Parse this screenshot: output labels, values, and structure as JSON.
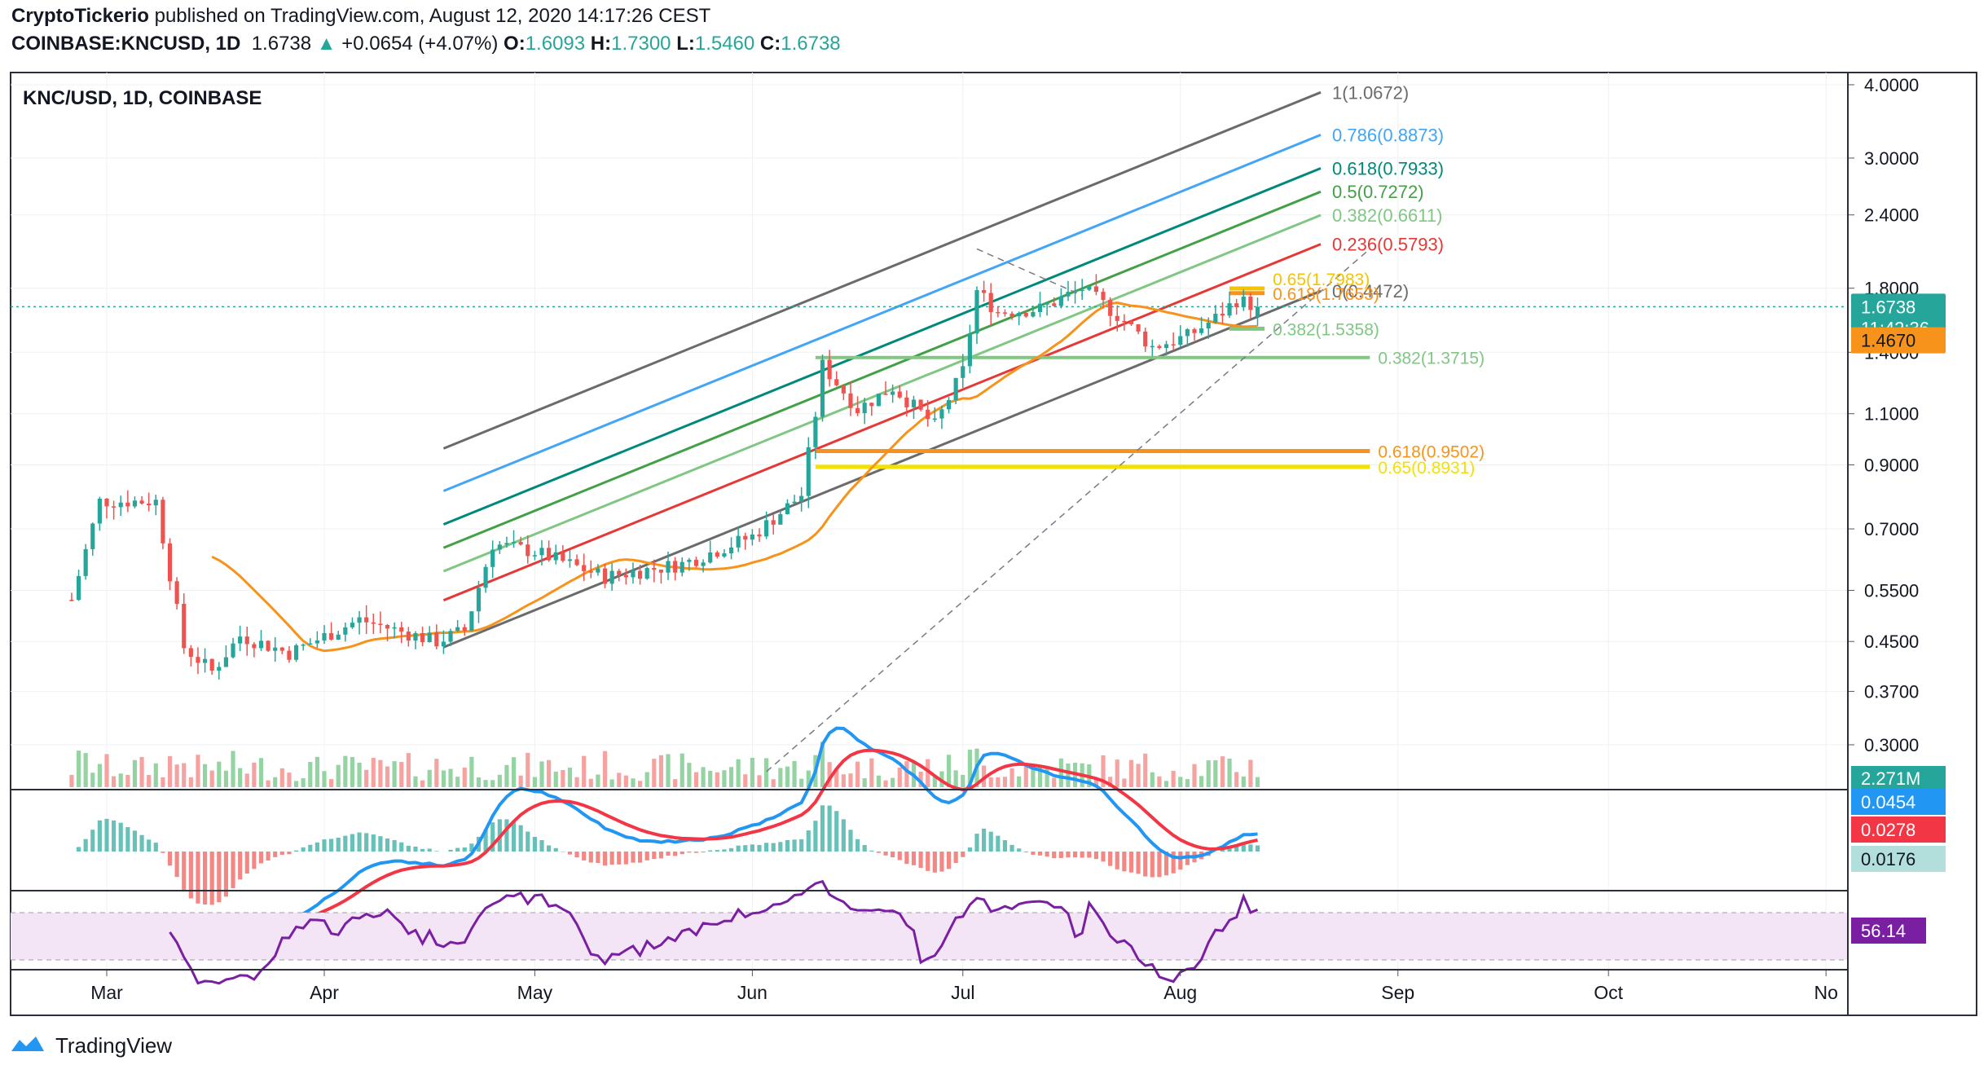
{
  "header": {
    "author": "CryptoTickerio",
    "published": "published on TradingView.com, August 12, 2020 14:17:26 CEST",
    "symbol": "COINBASE:KNCUSD, 1D",
    "last": "1.6738",
    "change": "+0.0654 (+4.07%)",
    "open_label": "O:",
    "open": "1.6093",
    "high_label": "H:",
    "high": "1.7300",
    "low_label": "L:",
    "low": "1.5460",
    "close_label": "C:",
    "close": "1.6738"
  },
  "pane_title": "KNC/USD, 1D, COINBASE",
  "footer_brand": "TradingView",
  "colors": {
    "up": "#26a69a",
    "down": "#ef5350",
    "vol_up": "#94d3a2",
    "vol_down": "#f6a2a0",
    "channel": "#6b6b6b",
    "fib_786": "#42a5f5",
    "fib_618": "#00897b",
    "fib_5": "#43a047",
    "fib_382": "#81c784",
    "fib_236": "#e53935",
    "ma": "#f7931a",
    "macd": "#2196f3",
    "signal": "#f23645",
    "rsi": "#7b1fa2",
    "price_line": "#26a69a"
  },
  "chart_data": {
    "type": "candlestick",
    "symbol": "KNC/USD",
    "timeframe": "1D",
    "exchange": "COINBASE",
    "scale": "log",
    "x_axis": {
      "labels": [
        "Mar",
        "Apr",
        "May",
        "Jun",
        "Jul",
        "Aug",
        "Sep",
        "Oct",
        "No"
      ],
      "dates": [
        "2020-03-01",
        "2020-04-01",
        "2020-05-01",
        "2020-06-01",
        "2020-07-01",
        "2020-08-01",
        "2020-09-01",
        "2020-10-01",
        "2020-11-01"
      ]
    },
    "y_axis": {
      "ticks": [
        "4.0000",
        "3.0000",
        "2.4000",
        "1.8000",
        "1.4000",
        "1.1000",
        "0.9000",
        "0.7000",
        "0.5500",
        "0.4500",
        "0.3700",
        "0.3000"
      ],
      "tick_values": [
        4.0,
        3.0,
        2.4,
        1.8,
        1.4,
        1.1,
        0.9,
        0.7,
        0.55,
        0.45,
        0.37,
        0.3
      ],
      "range": [
        0.27,
        4.6
      ],
      "badges": [
        {
          "text": "1.6738",
          "value": 1.6738,
          "kind": "last"
        },
        {
          "text": "11:42:36",
          "value": 1.54,
          "kind": "countdown"
        },
        {
          "text": "1.4670",
          "value": 1.467,
          "kind": "ma"
        }
      ]
    },
    "key_points": [
      {
        "date": "2020-02-25",
        "close": 0.53
      },
      {
        "date": "2020-02-29",
        "close": 0.78
      },
      {
        "date": "2020-03-08",
        "close": 0.78
      },
      {
        "date": "2020-03-12",
        "close": 0.44
      },
      {
        "date": "2020-03-16",
        "close": 0.4
      },
      {
        "date": "2020-03-20",
        "close": 0.46
      },
      {
        "date": "2020-03-27",
        "close": 0.43
      },
      {
        "date": "2020-04-06",
        "close": 0.49
      },
      {
        "date": "2020-04-17",
        "close": 0.45
      },
      {
        "date": "2020-04-21",
        "close": 0.47
      },
      {
        "date": "2020-04-25",
        "close": 0.66
      },
      {
        "date": "2020-05-01",
        "close": 0.64
      },
      {
        "date": "2020-05-11",
        "close": 0.58
      },
      {
        "date": "2020-05-22",
        "close": 0.61
      },
      {
        "date": "2020-06-01",
        "close": 0.68
      },
      {
        "date": "2020-06-08",
        "close": 0.8
      },
      {
        "date": "2020-06-10",
        "close": 1.1
      },
      {
        "date": "2020-06-11",
        "close": 1.33
      },
      {
        "date": "2020-06-16",
        "close": 1.12
      },
      {
        "date": "2020-06-21",
        "close": 1.22
      },
      {
        "date": "2020-06-27",
        "close": 1.05
      },
      {
        "date": "2020-07-01",
        "close": 1.3
      },
      {
        "date": "2020-07-03",
        "close": 1.78
      },
      {
        "date": "2020-07-06",
        "close": 1.64
      },
      {
        "date": "2020-07-12",
        "close": 1.66
      },
      {
        "date": "2020-07-18",
        "close": 1.8
      },
      {
        "date": "2020-07-23",
        "close": 1.62
      },
      {
        "date": "2020-07-28",
        "close": 1.43
      },
      {
        "date": "2020-08-02",
        "close": 1.49
      },
      {
        "date": "2020-08-06",
        "close": 1.6
      },
      {
        "date": "2020-08-09",
        "close": 1.72
      },
      {
        "date": "2020-08-12",
        "close": 1.6738
      }
    ],
    "volume": {
      "last_label": "2.271M"
    },
    "fib_channel": [
      {
        "level": "1",
        "value": "1.0672",
        "label": "1(1.0672)"
      },
      {
        "level": "0.786",
        "value": "0.8873",
        "label": "0.786(0.8873)"
      },
      {
        "level": "0.618",
        "value": "0.7933",
        "label": "0.618(0.7933)"
      },
      {
        "level": "0.5",
        "value": "0.7272",
        "label": "0.5(0.7272)"
      },
      {
        "level": "0.382",
        "value": "0.6611",
        "label": "0.382(0.6611)"
      },
      {
        "level": "0.236",
        "value": "0.5793",
        "label": "0.236(0.5793)"
      },
      {
        "level": "0",
        "value": "0.4472",
        "label": "0(0.4472)"
      }
    ],
    "fib_retracements": [
      {
        "label": "0.382(1.3715)",
        "price": 1.3715
      },
      {
        "label": "0.618(0.9502)",
        "price": 0.9502
      },
      {
        "label": "0.65(0.8931)",
        "price": 0.8931
      },
      {
        "label": "0.65(1.7983)",
        "price": 1.7983
      },
      {
        "label": "0.618(1.7653)",
        "price": 1.7653
      },
      {
        "label": "0.382(1.5358)",
        "price": 1.5358
      }
    ],
    "macd": {
      "labels": [
        "0.0454",
        "0.0278",
        "0.0176"
      ]
    },
    "rsi": {
      "value": "56.14",
      "upper": 70,
      "lower": 30
    }
  }
}
